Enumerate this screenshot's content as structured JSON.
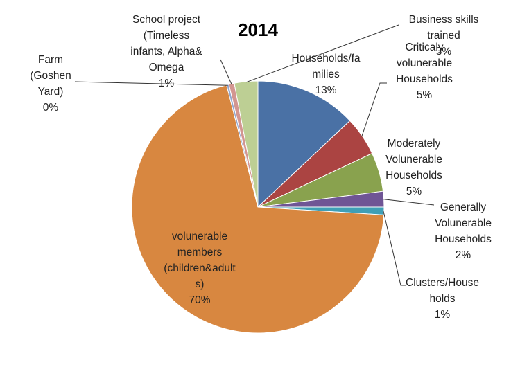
{
  "chart_data": {
    "type": "pie",
    "title": "2014",
    "legend": "none",
    "slices": [
      {
        "label": [
          "Households/fa",
          "milies"
        ],
        "percent_label": "13%",
        "value": 13,
        "color": "#4a71a5"
      },
      {
        "label": [
          "Criticaly",
          "volunerable",
          "Households"
        ],
        "percent_label": "5%",
        "value": 5,
        "color": "#ab4442"
      },
      {
        "label": [
          "Moderately",
          "Volunerable",
          "Households"
        ],
        "percent_label": "5%",
        "value": 5,
        "color": "#89a24e"
      },
      {
        "label": [
          "Generally",
          "Volunerable",
          "Households"
        ],
        "percent_label": "2%",
        "value": 2,
        "color": "#6f5595"
      },
      {
        "label": [
          "Clusters/House",
          "holds"
        ],
        "percent_label": "1%",
        "value": 1,
        "color": "#3f9fb6"
      },
      {
        "label": [
          "volunerable",
          "members",
          "(children&adult",
          "s)"
        ],
        "percent_label": "70%",
        "value": 70,
        "color": "#d88740"
      },
      {
        "label": [
          "Farm",
          "(Goshen",
          "Yard)"
        ],
        "percent_label": "0%",
        "value": 0.3,
        "color": "#93a8cf"
      },
      {
        "label": [
          "School project",
          "(Timeless",
          "infants, Alpha&",
          "Omega"
        ],
        "percent_label": "1%",
        "value": 0.7,
        "color": "#d39691"
      },
      {
        "label": [
          "Business skills",
          "trained"
        ],
        "percent_label": "3%",
        "value": 3,
        "color": "#bdcf94"
      }
    ]
  }
}
